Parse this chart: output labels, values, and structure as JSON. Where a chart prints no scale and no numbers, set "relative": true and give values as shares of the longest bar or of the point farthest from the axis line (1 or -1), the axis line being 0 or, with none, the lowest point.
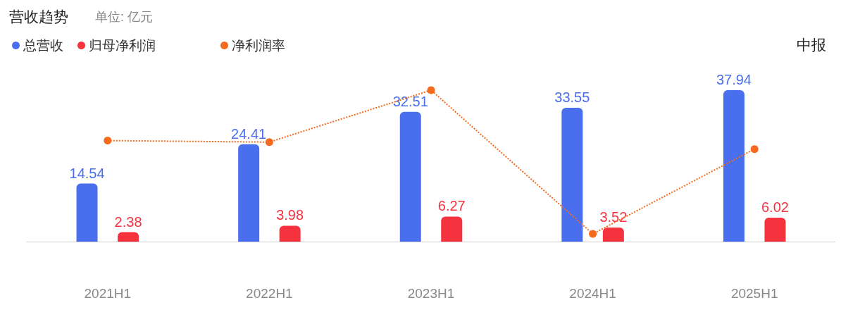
{
  "chart_data": [
    {
      "type": "bar",
      "title": "营收趋势",
      "subtitle": "单位: 亿元",
      "annotations": [
        "中报"
      ],
      "categories": [
        "2021H1",
        "2022H1",
        "2023H1",
        "2024H1",
        "2025H1"
      ],
      "series": [
        {
          "name": "总营收",
          "color": "#4a6fee",
          "values": [
            14.54,
            24.41,
            32.51,
            33.55,
            37.94
          ],
          "value_labels": [
            "14.54",
            "24.41",
            "32.51",
            "33.55",
            "37.94"
          ]
        },
        {
          "name": "归母净利润",
          "color": "#f5333f",
          "values": [
            2.38,
            3.98,
            6.27,
            3.52,
            6.02
          ],
          "value_labels": [
            "2.38",
            "3.98",
            "6.27",
            "3.52",
            "6.02"
          ]
        }
      ],
      "legend": "top left",
      "grid": false
    },
    {
      "type": "line",
      "relative": true,
      "categories": [
        null,
        null,
        null,
        null,
        null
      ],
      "series": [
        {
          "name": "净利润率",
          "color": "#f56a1c",
          "values": [
            0.667,
            0.657,
            1,
            0.051,
            0.611
          ]
        }
      ],
      "marker": "circle",
      "line_style": "dotted",
      "legend": "top left",
      "grid": false
    }
  ]
}
